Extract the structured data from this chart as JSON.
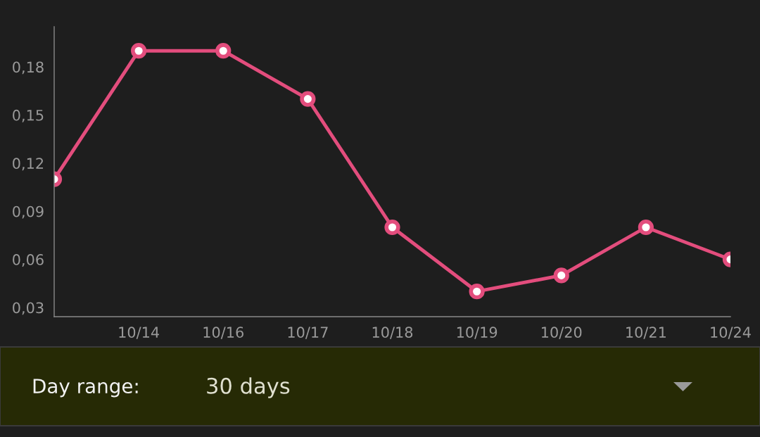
{
  "chart_data": {
    "type": "line",
    "categories": [
      null,
      "10/14",
      "10/16",
      "10/17",
      "10/18",
      "10/19",
      "10/20",
      "10/21",
      "10/24"
    ],
    "series": [
      {
        "color": "#e34d7d",
        "values": [
          0.11,
          0.19,
          0.19,
          0.16,
          0.08,
          0.04,
          0.05,
          0.08,
          0.06
        ]
      }
    ],
    "ylim": [
      0.0243,
      0.205
    ],
    "yticks": [
      {
        "value": 0.03,
        "label": "0,03"
      },
      {
        "value": 0.06,
        "label": "0,06"
      },
      {
        "value": 0.09,
        "label": "0,09"
      },
      {
        "value": 0.12,
        "label": "0,12"
      },
      {
        "value": 0.15,
        "label": "0,15"
      },
      {
        "value": 0.18,
        "label": "0,18"
      }
    ],
    "marker": "circle",
    "line_style": "solid",
    "grid": false,
    "legend": false,
    "annotations": [
      "Day range:",
      "30 days"
    ]
  }
}
